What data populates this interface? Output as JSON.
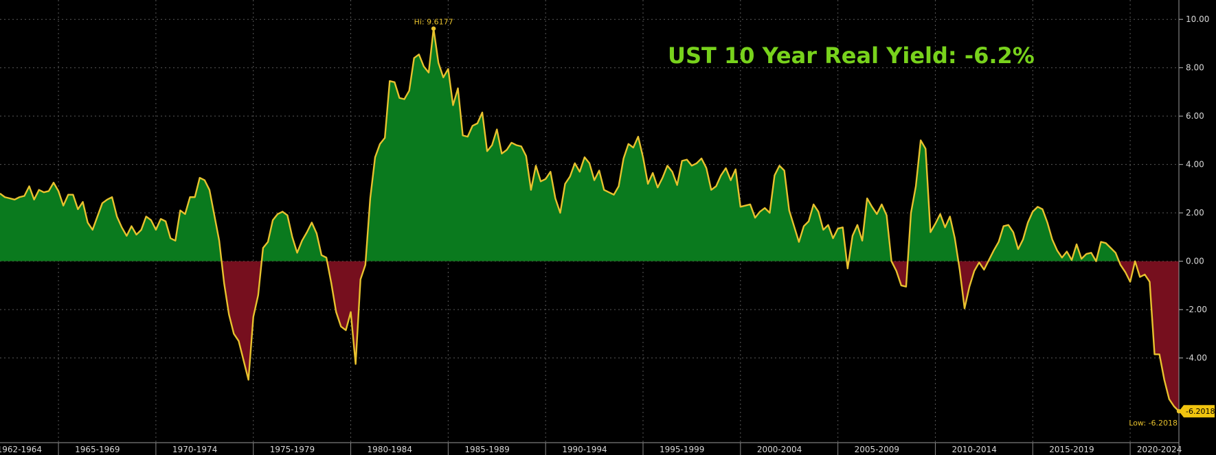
{
  "chart_data": {
    "type": "area",
    "title": "UST 10 Year Real Yield: -6.2%",
    "xlabel": "",
    "ylabel": "",
    "x_range": [
      1962.0,
      2022.5
    ],
    "ylim": [
      -7.5,
      10.8
    ],
    "y_ticks": [
      10,
      8,
      6,
      4,
      2,
      0,
      -2,
      -4
    ],
    "y_tick_labels": [
      "10.00",
      "8.00",
      "6.00",
      "4.00",
      "2.00",
      "0.00",
      "-2.00",
      "-4.00"
    ],
    "x_tick_labels": [
      "1962-1964",
      "1965-1969",
      "1970-1974",
      "1975-1979",
      "1980-1984",
      "1985-1989",
      "1990-1994",
      "1995-1999",
      "2000-2004",
      "2005-2009",
      "2010-2014",
      "2015-2019",
      "2020-2024"
    ],
    "x_tick_positions": [
      1963.0,
      1967.0,
      1972.0,
      1977.0,
      1982.0,
      1987.0,
      1992.0,
      1997.0,
      2002.0,
      2007.0,
      2012.0,
      2017.0,
      2021.5
    ],
    "grid": true,
    "colors": {
      "line": "#e8c22e",
      "positive_fill": "#0a7a1e",
      "negative_fill": "#760f1e",
      "title": "#78d21c",
      "grid": "#5a5a5a"
    },
    "annotations": {
      "high": {
        "label": "Hi: 9.6177",
        "x": 1984.25,
        "y": 9.6177
      },
      "low": {
        "label": "Low: -6.2018",
        "x": 2022.5,
        "y": -6.2018
      },
      "last_value_label": "-6.2018"
    },
    "series": [
      {
        "values": [
          [
            1962.0,
            2.8
          ],
          [
            1962.25,
            2.65
          ],
          [
            1962.5,
            2.6
          ],
          [
            1962.75,
            2.55
          ],
          [
            1963.0,
            2.65
          ],
          [
            1963.25,
            2.7
          ],
          [
            1963.5,
            3.1
          ],
          [
            1963.75,
            2.55
          ],
          [
            1964.0,
            2.95
          ],
          [
            1964.25,
            2.85
          ],
          [
            1964.5,
            2.9
          ],
          [
            1964.75,
            3.25
          ],
          [
            1965.0,
            2.9
          ],
          [
            1965.25,
            2.3
          ],
          [
            1965.5,
            2.75
          ],
          [
            1965.75,
            2.75
          ],
          [
            1966.0,
            2.15
          ],
          [
            1966.25,
            2.45
          ],
          [
            1966.5,
            1.6
          ],
          [
            1966.75,
            1.3
          ],
          [
            1967.0,
            1.85
          ],
          [
            1967.25,
            2.4
          ],
          [
            1967.5,
            2.55
          ],
          [
            1967.75,
            2.65
          ],
          [
            1968.0,
            1.85
          ],
          [
            1968.25,
            1.4
          ],
          [
            1968.5,
            1.05
          ],
          [
            1968.75,
            1.45
          ],
          [
            1969.0,
            1.1
          ],
          [
            1969.25,
            1.3
          ],
          [
            1969.5,
            1.85
          ],
          [
            1969.75,
            1.7
          ],
          [
            1970.0,
            1.3
          ],
          [
            1970.25,
            1.75
          ],
          [
            1970.5,
            1.65
          ],
          [
            1970.75,
            0.95
          ],
          [
            1971.0,
            0.85
          ],
          [
            1971.25,
            2.1
          ],
          [
            1971.5,
            1.95
          ],
          [
            1971.75,
            2.65
          ],
          [
            1972.0,
            2.65
          ],
          [
            1972.25,
            3.45
          ],
          [
            1972.5,
            3.35
          ],
          [
            1972.75,
            2.95
          ],
          [
            1973.0,
            1.9
          ],
          [
            1973.25,
            0.85
          ],
          [
            1973.5,
            -0.9
          ],
          [
            1973.75,
            -2.2
          ],
          [
            1974.0,
            -3.0
          ],
          [
            1974.25,
            -3.3
          ],
          [
            1974.5,
            -4.1
          ],
          [
            1974.75,
            -4.9
          ],
          [
            1975.0,
            -2.3
          ],
          [
            1975.25,
            -1.4
          ],
          [
            1975.5,
            0.55
          ],
          [
            1975.75,
            0.8
          ],
          [
            1976.0,
            1.7
          ],
          [
            1976.25,
            1.95
          ],
          [
            1976.5,
            2.05
          ],
          [
            1976.75,
            1.9
          ],
          [
            1977.0,
            1.0
          ],
          [
            1977.25,
            0.35
          ],
          [
            1977.5,
            0.85
          ],
          [
            1977.75,
            1.2
          ],
          [
            1978.0,
            1.6
          ],
          [
            1978.25,
            1.15
          ],
          [
            1978.5,
            0.25
          ],
          [
            1978.75,
            0.15
          ],
          [
            1979.0,
            -0.9
          ],
          [
            1979.25,
            -2.1
          ],
          [
            1979.5,
            -2.7
          ],
          [
            1979.75,
            -2.85
          ],
          [
            1980.0,
            -2.1
          ],
          [
            1980.25,
            -4.25
          ],
          [
            1980.5,
            -0.75
          ],
          [
            1980.75,
            -0.15
          ],
          [
            1981.0,
            2.6
          ],
          [
            1981.25,
            4.3
          ],
          [
            1981.5,
            4.85
          ],
          [
            1981.75,
            5.1
          ],
          [
            1982.0,
            7.45
          ],
          [
            1982.25,
            7.4
          ],
          [
            1982.5,
            6.75
          ],
          [
            1982.75,
            6.7
          ],
          [
            1983.0,
            7.05
          ],
          [
            1983.25,
            8.4
          ],
          [
            1983.5,
            8.55
          ],
          [
            1983.75,
            8.05
          ],
          [
            1984.0,
            7.8
          ],
          [
            1984.25,
            9.6177
          ],
          [
            1984.5,
            8.2
          ],
          [
            1984.75,
            7.6
          ],
          [
            1985.0,
            7.95
          ],
          [
            1985.25,
            6.45
          ],
          [
            1985.5,
            7.15
          ],
          [
            1985.75,
            5.2
          ],
          [
            1986.0,
            5.15
          ],
          [
            1986.25,
            5.6
          ],
          [
            1986.5,
            5.7
          ],
          [
            1986.75,
            6.15
          ],
          [
            1987.0,
            4.55
          ],
          [
            1987.25,
            4.8
          ],
          [
            1987.5,
            5.45
          ],
          [
            1987.75,
            4.45
          ],
          [
            1988.0,
            4.6
          ],
          [
            1988.25,
            4.9
          ],
          [
            1988.5,
            4.8
          ],
          [
            1988.75,
            4.75
          ],
          [
            1989.0,
            4.35
          ],
          [
            1989.25,
            2.95
          ],
          [
            1989.5,
            3.95
          ],
          [
            1989.75,
            3.3
          ],
          [
            1990.0,
            3.4
          ],
          [
            1990.25,
            3.7
          ],
          [
            1990.5,
            2.6
          ],
          [
            1990.75,
            2.0
          ],
          [
            1991.0,
            3.2
          ],
          [
            1991.25,
            3.5
          ],
          [
            1991.5,
            4.05
          ],
          [
            1991.75,
            3.7
          ],
          [
            1992.0,
            4.3
          ],
          [
            1992.25,
            4.05
          ],
          [
            1992.5,
            3.35
          ],
          [
            1992.75,
            3.75
          ],
          [
            1993.0,
            2.95
          ],
          [
            1993.25,
            2.85
          ],
          [
            1993.5,
            2.75
          ],
          [
            1993.75,
            3.1
          ],
          [
            1994.0,
            4.25
          ],
          [
            1994.25,
            4.85
          ],
          [
            1994.5,
            4.7
          ],
          [
            1994.75,
            5.15
          ],
          [
            1995.0,
            4.3
          ],
          [
            1995.25,
            3.2
          ],
          [
            1995.5,
            3.65
          ],
          [
            1995.75,
            3.05
          ],
          [
            1996.0,
            3.45
          ],
          [
            1996.25,
            3.95
          ],
          [
            1996.5,
            3.7
          ],
          [
            1996.75,
            3.15
          ],
          [
            1997.0,
            4.15
          ],
          [
            1997.25,
            4.2
          ],
          [
            1997.5,
            3.95
          ],
          [
            1997.75,
            4.05
          ],
          [
            1998.0,
            4.25
          ],
          [
            1998.25,
            3.85
          ],
          [
            1998.5,
            2.95
          ],
          [
            1998.75,
            3.1
          ],
          [
            1999.0,
            3.55
          ],
          [
            1999.25,
            3.85
          ],
          [
            1999.5,
            3.35
          ],
          [
            1999.75,
            3.8
          ],
          [
            2000.0,
            2.25
          ],
          [
            2000.25,
            2.3
          ],
          [
            2000.5,
            2.35
          ],
          [
            2000.75,
            1.8
          ],
          [
            2001.0,
            2.05
          ],
          [
            2001.25,
            2.2
          ],
          [
            2001.5,
            2.0
          ],
          [
            2001.75,
            3.55
          ],
          [
            2002.0,
            3.95
          ],
          [
            2002.25,
            3.75
          ],
          [
            2002.5,
            2.1
          ],
          [
            2002.75,
            1.45
          ],
          [
            2003.0,
            0.8
          ],
          [
            2003.25,
            1.45
          ],
          [
            2003.5,
            1.65
          ],
          [
            2003.75,
            2.35
          ],
          [
            2004.0,
            2.05
          ],
          [
            2004.25,
            1.3
          ],
          [
            2004.5,
            1.5
          ],
          [
            2004.75,
            0.95
          ],
          [
            2005.0,
            1.35
          ],
          [
            2005.25,
            1.4
          ],
          [
            2005.5,
            -0.3
          ],
          [
            2005.75,
            1.05
          ],
          [
            2006.0,
            1.5
          ],
          [
            2006.25,
            0.85
          ],
          [
            2006.5,
            2.6
          ],
          [
            2006.75,
            2.25
          ],
          [
            2007.0,
            1.95
          ],
          [
            2007.25,
            2.35
          ],
          [
            2007.5,
            1.9
          ],
          [
            2007.75,
            0.0
          ],
          [
            2008.0,
            -0.4
          ],
          [
            2008.25,
            -1.0
          ],
          [
            2008.5,
            -1.05
          ],
          [
            2008.75,
            2.0
          ],
          [
            2009.0,
            3.1
          ],
          [
            2009.25,
            5.0
          ],
          [
            2009.5,
            4.65
          ],
          [
            2009.75,
            1.2
          ],
          [
            2010.0,
            1.55
          ],
          [
            2010.25,
            1.95
          ],
          [
            2010.5,
            1.4
          ],
          [
            2010.75,
            1.85
          ],
          [
            2011.0,
            0.95
          ],
          [
            2011.25,
            -0.35
          ],
          [
            2011.5,
            -1.95
          ],
          [
            2011.75,
            -1.05
          ],
          [
            2012.0,
            -0.4
          ],
          [
            2012.25,
            -0.05
          ],
          [
            2012.5,
            -0.35
          ],
          [
            2012.75,
            0.05
          ],
          [
            2013.0,
            0.45
          ],
          [
            2013.25,
            0.8
          ],
          [
            2013.5,
            1.45
          ],
          [
            2013.75,
            1.5
          ],
          [
            2014.0,
            1.2
          ],
          [
            2014.25,
            0.5
          ],
          [
            2014.5,
            0.9
          ],
          [
            2014.75,
            1.6
          ],
          [
            2015.0,
            2.05
          ],
          [
            2015.25,
            2.25
          ],
          [
            2015.5,
            2.15
          ],
          [
            2015.75,
            1.6
          ],
          [
            2016.0,
            0.9
          ],
          [
            2016.25,
            0.45
          ],
          [
            2016.5,
            0.15
          ],
          [
            2016.75,
            0.4
          ],
          [
            2017.0,
            0.05
          ],
          [
            2017.25,
            0.7
          ],
          [
            2017.5,
            0.1
          ],
          [
            2017.75,
            0.3
          ],
          [
            2018.0,
            0.35
          ],
          [
            2018.25,
            0.0
          ],
          [
            2018.5,
            0.8
          ],
          [
            2018.75,
            0.75
          ],
          [
            2019.0,
            0.55
          ],
          [
            2019.25,
            0.35
          ],
          [
            2019.5,
            -0.15
          ],
          [
            2019.75,
            -0.45
          ],
          [
            2020.0,
            -0.85
          ],
          [
            2020.25,
            0.0
          ],
          [
            2020.5,
            -0.65
          ],
          [
            2020.75,
            -0.55
          ],
          [
            2021.0,
            -0.85
          ],
          [
            2021.25,
            -3.85
          ],
          [
            2021.5,
            -3.85
          ],
          [
            2021.75,
            -4.9
          ],
          [
            2022.0,
            -5.7
          ],
          [
            2022.25,
            -6.0
          ],
          [
            2022.5,
            -6.2018
          ]
        ]
      }
    ]
  }
}
